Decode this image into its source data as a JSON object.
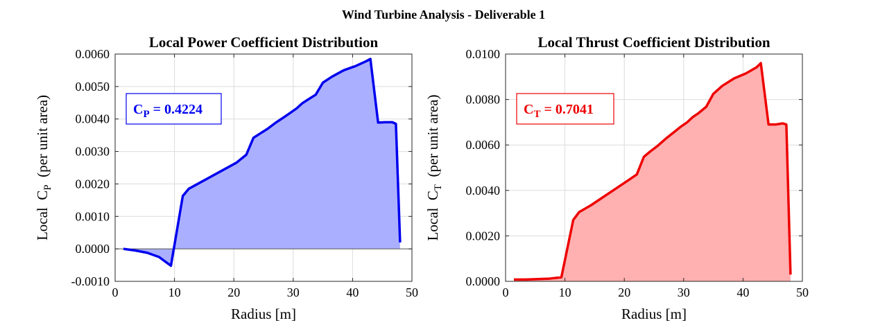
{
  "figure": {
    "suptitle": "Wind Turbine Analysis - Deliverable 1"
  },
  "chart_data": [
    {
      "type": "area",
      "title": "Local Power Coefficient Distribution",
      "xlabel": "Radius [m]",
      "ylabel_prefix": "Local",
      "ylabel_symbol": "C",
      "ylabel_sub": "P",
      "ylabel_suffix": "(per unit area)",
      "xlim": [
        0,
        50
      ],
      "ylim": [
        -0.001,
        0.006
      ],
      "xticks": [
        "0",
        "10",
        "20",
        "30",
        "40",
        "50"
      ],
      "yticks": [
        "-0.0010",
        "0.0000",
        "0.0010",
        "0.0020",
        "0.0030",
        "0.0040",
        "0.0050",
        "0.0060"
      ],
      "grid": true,
      "zero_line": true,
      "color": "#0000ee",
      "fill_color": "#aab0ff",
      "annotation": {
        "symbol": "C",
        "sub": "P",
        "text": " = 0.4224"
      },
      "series": [
        {
          "x": [
            1.4,
            3.4,
            5.4,
            7.4,
            9.4,
            11.4,
            12.4,
            14.4,
            16.4,
            18.4,
            20.4,
            22.1,
            23.3,
            24.4,
            25.7,
            27.0,
            28.4,
            29.6,
            30.6,
            31.5,
            32.5,
            33.8,
            35.0,
            36.5,
            38.5,
            40.5,
            42.3,
            43.0,
            44.3,
            45.5,
            46.7,
            47.3,
            48.0
          ],
          "y": [
            0.0,
            -5e-05,
            -0.00012,
            -0.00025,
            -0.00052,
            0.00163,
            0.00185,
            0.00205,
            0.00225,
            0.00245,
            0.00265,
            0.0029,
            0.00342,
            0.00355,
            0.0037,
            0.00388,
            0.00405,
            0.0042,
            0.00433,
            0.00448,
            0.0046,
            0.00475,
            0.00512,
            0.0053,
            0.0055,
            0.00563,
            0.00578,
            0.00585,
            0.00389,
            0.0039,
            0.0039,
            0.00385,
            0.0002
          ]
        }
      ]
    },
    {
      "type": "area",
      "title": "Local Thrust Coefficient Distribution",
      "xlabel": "Radius [m]",
      "ylabel_prefix": "Local",
      "ylabel_symbol": "C",
      "ylabel_sub": "T",
      "ylabel_suffix": "(per unit area)",
      "xlim": [
        0,
        50
      ],
      "ylim": [
        0,
        0.01
      ],
      "xticks": [
        "0",
        "10",
        "20",
        "30",
        "40",
        "50"
      ],
      "yticks": [
        "0.0000",
        "0.0020",
        "0.0040",
        "0.0060",
        "0.0080",
        "0.0100"
      ],
      "grid": true,
      "zero_line": false,
      "color": "#ee0000",
      "fill_color": "#ffb0b0",
      "annotation": {
        "symbol": "C",
        "sub": "T",
        "text": " = 0.7041"
      },
      "series": [
        {
          "x": [
            1.4,
            3.4,
            5.4,
            7.4,
            9.4,
            11.4,
            12.4,
            14.4,
            16.4,
            18.4,
            20.4,
            22.1,
            23.3,
            24.4,
            25.7,
            27.0,
            28.4,
            29.6,
            30.6,
            31.5,
            32.5,
            33.8,
            35.0,
            36.5,
            38.5,
            40.5,
            42.3,
            43.0,
            44.3,
            45.5,
            46.7,
            47.3,
            48.0
          ],
          "y": [
            8e-05,
            8e-05,
            0.0001,
            0.00012,
            0.00018,
            0.0027,
            0.00305,
            0.00335,
            0.0037,
            0.00405,
            0.0044,
            0.0047,
            0.00548,
            0.00572,
            0.00598,
            0.00628,
            0.00657,
            0.00682,
            0.007,
            0.00722,
            0.0074,
            0.00768,
            0.00825,
            0.0086,
            0.00893,
            0.00915,
            0.00942,
            0.0096,
            0.0069,
            0.0069,
            0.00695,
            0.0069,
            0.0003
          ]
        }
      ]
    }
  ]
}
